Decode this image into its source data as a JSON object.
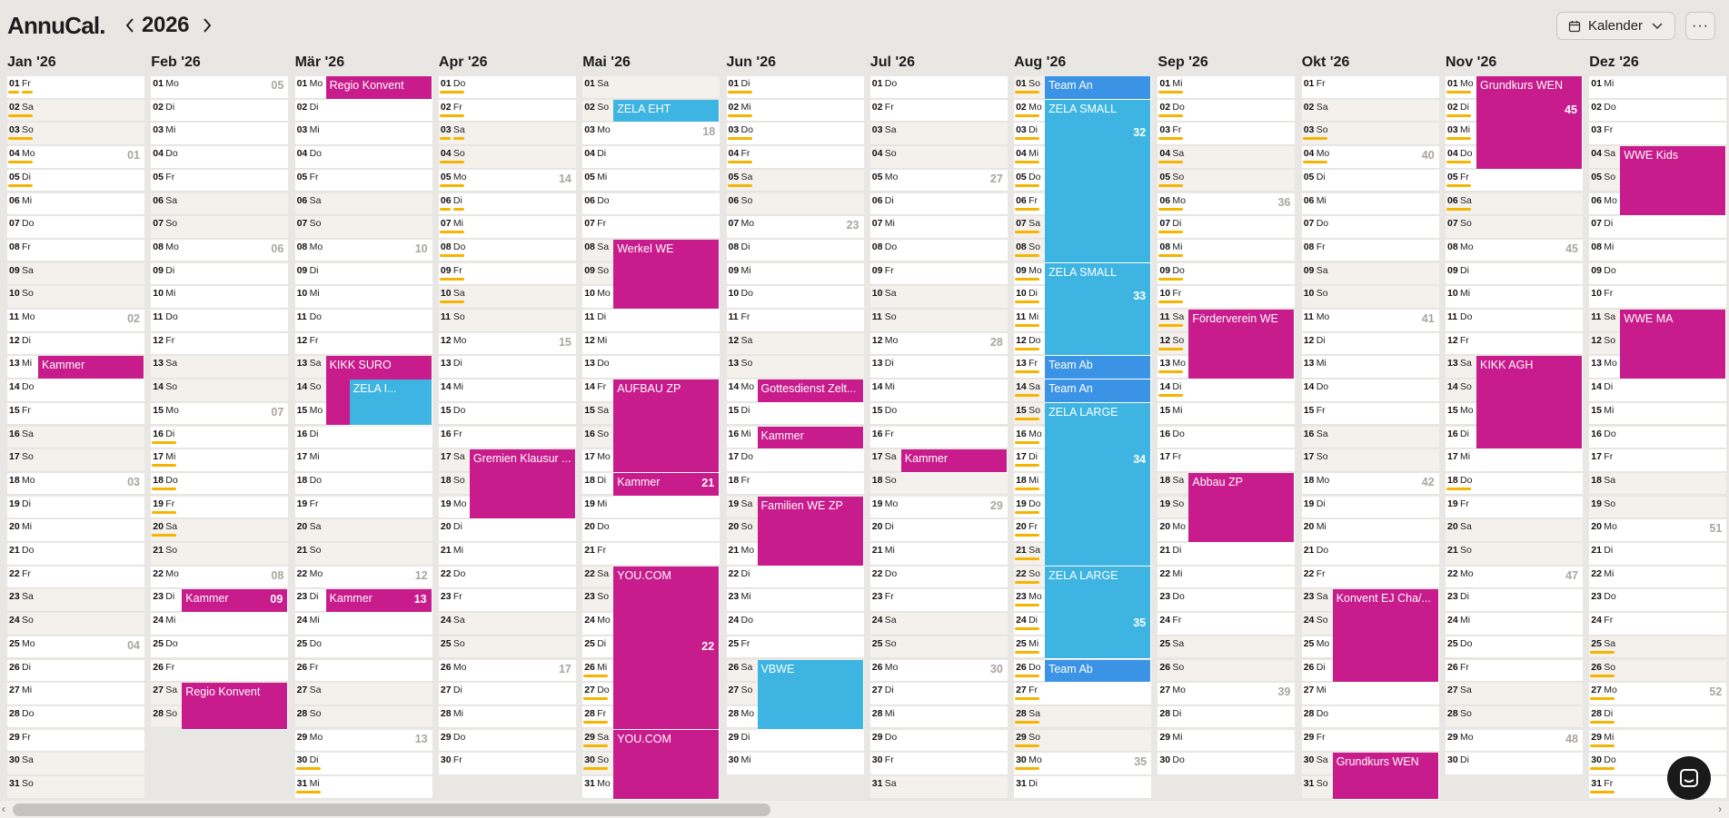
{
  "app": {
    "logo": "AnnuCal.",
    "year": "2026"
  },
  "toolbar": {
    "calendar_label": "Kalender",
    "more_label": "···"
  },
  "colors": {
    "pink": "#c81b8c",
    "cyan": "#3db4e2",
    "blue": "#3b93e5",
    "bar": "#f5b400"
  },
  "months": [
    {
      "name": "Jan '26",
      "start": 4,
      "days": 31,
      "bars": {
        "1": 2,
        "2": 1,
        "3": 1,
        "4": 1,
        "5": 1
      },
      "events": [
        {
          "label": "Kammer",
          "start": 13,
          "end": 13,
          "color": "pink"
        }
      ]
    },
    {
      "name": "Feb '26",
      "start": 0,
      "days": 28,
      "bars": {
        "16": 1,
        "17": 1,
        "18": 1,
        "19": 1,
        "20": 1
      },
      "events": [
        {
          "label": "Kammer",
          "start": 23,
          "end": 23,
          "color": "pink",
          "week": "09"
        },
        {
          "label": "Regio Konvent",
          "start": 27,
          "end": 28,
          "color": "pink"
        }
      ]
    },
    {
      "name": "Mär '26",
      "start": 0,
      "days": 31,
      "bars": {
        "30": 1,
        "31": 1
      },
      "events": [
        {
          "label": "Regio Konvent",
          "start": 1,
          "end": 1,
          "color": "pink"
        },
        {
          "label": "KIKK SURO",
          "start": 13,
          "end": 15,
          "color": "pink"
        },
        {
          "label": "ZELA I...",
          "start": 14,
          "end": 15,
          "color": "cyan",
          "indent": 1
        },
        {
          "label": "Kammer",
          "start": 23,
          "end": 23,
          "color": "pink",
          "week": "13"
        }
      ]
    },
    {
      "name": "Apr '26",
      "start": 3,
      "days": 30,
      "bars": {
        "1": 1,
        "2": 1,
        "3": 2,
        "4": 1,
        "5": 1,
        "6": 2,
        "7": 1,
        "8": 1,
        "9": 1,
        "10": 1
      },
      "events": [
        {
          "label": "Gremien Klausur ...",
          "start": 17,
          "end": 19,
          "color": "pink"
        }
      ]
    },
    {
      "name": "Mai '26",
      "start": 5,
      "days": 31,
      "bars": {
        "26": 1,
        "27": 1,
        "28": 1,
        "29": 1,
        "30": 1
      },
      "events": [
        {
          "label": "ZELA EHT",
          "start": 2,
          "end": 2,
          "color": "cyan"
        },
        {
          "label": "Werkel WE",
          "start": 8,
          "end": 10,
          "color": "pink"
        },
        {
          "label": "AUFBAU ZP",
          "start": 14,
          "end": 17,
          "color": "pink"
        },
        {
          "label": "Kammer",
          "start": 18,
          "end": 18,
          "color": "pink",
          "week": "21"
        },
        {
          "label": "YOU.COM",
          "start": 22,
          "end": 28,
          "color": "pink",
          "week": "22",
          "weekRow": 25
        },
        {
          "label": "YOU.COM",
          "start": 29,
          "end": 31,
          "color": "pink"
        }
      ]
    },
    {
      "name": "Jun '26",
      "start": 1,
      "days": 30,
      "bars": {
        "1": 1,
        "2": 1,
        "3": 1,
        "4": 1,
        "5": 1
      },
      "events": [
        {
          "label": "Gottesdienst Zelt...",
          "start": 14,
          "end": 14,
          "color": "pink"
        },
        {
          "label": "Kammer",
          "start": 16,
          "end": 16,
          "color": "pink"
        },
        {
          "label": "Familien WE ZP",
          "start": 19,
          "end": 21,
          "color": "pink"
        },
        {
          "label": "VBWE",
          "start": 26,
          "end": 28,
          "color": "cyan"
        }
      ]
    },
    {
      "name": "Jul '26",
      "start": 3,
      "days": 31,
      "bars": {},
      "events": [
        {
          "label": "Kammer",
          "start": 17,
          "end": 17,
          "color": "pink"
        }
      ]
    },
    {
      "name": "Aug '26",
      "start": 6,
      "days": 31,
      "bars": {
        "1": 1,
        "2": 1,
        "3": 1,
        "4": 1,
        "5": 1,
        "6": 1,
        "7": 1,
        "8": 1,
        "9": 1,
        "10": 1,
        "11": 1,
        "12": 1,
        "13": 1,
        "14": 1,
        "15": 1,
        "16": 1,
        "17": 1,
        "18": 1,
        "19": 1,
        "20": 1,
        "21": 1,
        "22": 1,
        "23": 1,
        "24": 1,
        "25": 1,
        "26": 1,
        "27": 1,
        "28": 1,
        "29": 1,
        "30": 1
      },
      "events": [
        {
          "label": "Team An",
          "start": 1,
          "end": 1,
          "color": "blue"
        },
        {
          "label": "ZELA SMALL",
          "start": 2,
          "end": 8,
          "color": "cyan",
          "week": "32",
          "weekRow": 3
        },
        {
          "label": "ZELA SMALL",
          "start": 9,
          "end": 12,
          "color": "cyan",
          "week": "33",
          "weekRow": 10
        },
        {
          "label": "Team Ab",
          "start": 13,
          "end": 13,
          "color": "blue"
        },
        {
          "label": "Team An",
          "start": 14,
          "end": 14,
          "color": "blue"
        },
        {
          "label": "ZELA LARGE",
          "start": 15,
          "end": 21,
          "color": "cyan",
          "week": "34",
          "weekRow": 17
        },
        {
          "label": "ZELA LARGE",
          "start": 22,
          "end": 25,
          "color": "cyan",
          "week": "35",
          "weekRow": 24
        },
        {
          "label": "Team Ab",
          "start": 26,
          "end": 26,
          "color": "blue"
        }
      ]
    },
    {
      "name": "Sep '26",
      "start": 2,
      "days": 30,
      "bars": {
        "1": 1,
        "2": 1,
        "3": 1,
        "4": 1,
        "5": 1,
        "6": 1,
        "7": 1,
        "8": 1,
        "9": 1,
        "10": 1,
        "11": 1,
        "12": 1,
        "13": 1,
        "14": 1
      },
      "events": [
        {
          "label": "Förderverein WE",
          "start": 11,
          "end": 13,
          "color": "pink"
        },
        {
          "label": "Abbau ZP",
          "start": 18,
          "end": 20,
          "color": "pink"
        }
      ]
    },
    {
      "name": "Okt '26",
      "start": 4,
      "days": 31,
      "bars": {
        "3": 1,
        "4": 1
      },
      "events": [
        {
          "label": "Konvent EJ Cha/...",
          "start": 23,
          "end": 26,
          "color": "pink"
        },
        {
          "label": "Grundkurs WEN",
          "start": 30,
          "end": 31,
          "color": "pink"
        }
      ]
    },
    {
      "name": "Nov '26",
      "start": 0,
      "days": 30,
      "bars": {
        "1": 1,
        "2": 1,
        "3": 1,
        "4": 1,
        "5": 1,
        "6": 1,
        "18": 1
      },
      "events": [
        {
          "label": "Grundkurs WEN",
          "start": 1,
          "end": 4,
          "color": "pink",
          "week": "45",
          "weekRow": 2
        },
        {
          "label": "KIKK AGH",
          "start": 13,
          "end": 16,
          "color": "pink"
        }
      ]
    },
    {
      "name": "Dez '26",
      "start": 2,
      "days": 31,
      "bars": {
        "25": 1,
        "26": 1,
        "27": 1,
        "28": 1,
        "29": 1,
        "30": 1,
        "31": 1
      },
      "events": [
        {
          "label": "WWE Kids",
          "start": 4,
          "end": 6,
          "color": "pink"
        },
        {
          "label": "WWE MA",
          "start": 11,
          "end": 13,
          "color": "pink"
        }
      ]
    }
  ]
}
